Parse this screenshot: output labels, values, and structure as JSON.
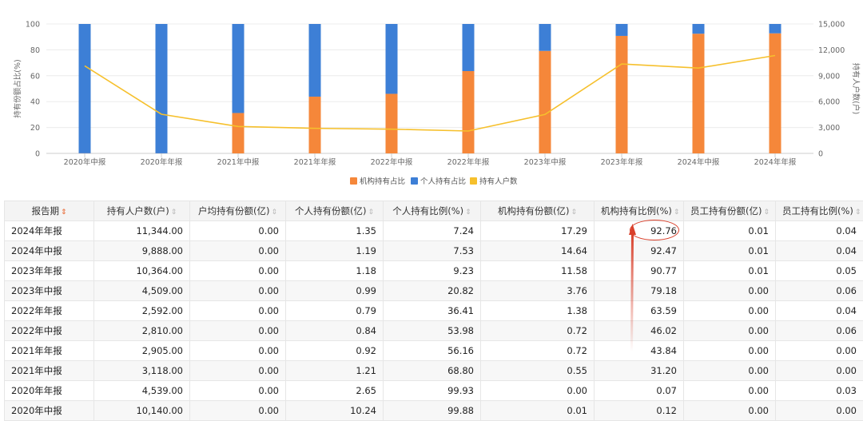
{
  "chart_data": {
    "type": "bar+line",
    "categories": [
      "2020年中报",
      "2020年年报",
      "2021年中报",
      "2021年年报",
      "2022年中报",
      "2022年年报",
      "2023年中报",
      "2023年年报",
      "2024年中报",
      "2024年年报"
    ],
    "series": [
      {
        "name": "机构持有占比",
        "type": "stacked-bar",
        "axis": "left",
        "color": "#f5873a",
        "values": [
          0.12,
          0.07,
          31.2,
          43.84,
          46.02,
          63.59,
          79.18,
          90.77,
          92.47,
          92.76
        ]
      },
      {
        "name": "个人持有占比",
        "type": "stacked-bar",
        "axis": "left",
        "color": "#3d7fd6",
        "values": [
          99.88,
          99.93,
          68.8,
          56.16,
          53.98,
          36.41,
          20.82,
          9.23,
          7.53,
          7.24
        ]
      },
      {
        "name": "持有人户数",
        "type": "line",
        "axis": "right",
        "color": "#f6c02c",
        "values": [
          10140,
          4539,
          3118,
          2905,
          2810,
          2592,
          4509,
          10364,
          9888,
          11344
        ]
      }
    ],
    "yleft": {
      "label": "持有份额占比(%)",
      "ylim": [
        0,
        100
      ],
      "ticks": [
        "0",
        "20",
        "40",
        "60",
        "80",
        "100"
      ]
    },
    "yright": {
      "label": "持有人户数(户)",
      "ylim": [
        0,
        15000
      ],
      "ticks": [
        "0",
        "3,000",
        "6,000",
        "9,000",
        "12,000",
        "15,000"
      ]
    },
    "legend": [
      "机构持有占比",
      "个人持有占比",
      "持有人户数"
    ]
  },
  "table": {
    "headers": [
      "报告期",
      "持有人户数(户)",
      "户均持有份额(亿)",
      "个人持有份额(亿)",
      "个人持有比例(%)",
      "机构持有份额(亿)",
      "机构持有比例(%)",
      "员工持有份额(亿)",
      "员工持有比例(%)"
    ],
    "rows": [
      [
        "2024年年报",
        "11,344.00",
        "0.00",
        "1.35",
        "7.24",
        "17.29",
        "92.76",
        "0.01",
        "0.04"
      ],
      [
        "2024年中报",
        "9,888.00",
        "0.00",
        "1.19",
        "7.53",
        "14.64",
        "92.47",
        "0.01",
        "0.04"
      ],
      [
        "2023年年报",
        "10,364.00",
        "0.00",
        "1.18",
        "9.23",
        "11.58",
        "90.77",
        "0.01",
        "0.05"
      ],
      [
        "2023年中报",
        "4,509.00",
        "0.00",
        "0.99",
        "20.82",
        "3.76",
        "79.18",
        "0.00",
        "0.06"
      ],
      [
        "2022年年报",
        "2,592.00",
        "0.00",
        "0.79",
        "36.41",
        "1.38",
        "63.59",
        "0.00",
        "0.04"
      ],
      [
        "2022年中报",
        "2,810.00",
        "0.00",
        "0.84",
        "53.98",
        "0.72",
        "46.02",
        "0.00",
        "0.06"
      ],
      [
        "2021年年报",
        "2,905.00",
        "0.00",
        "0.92",
        "56.16",
        "0.72",
        "43.84",
        "0.00",
        "0.00"
      ],
      [
        "2021年中报",
        "3,118.00",
        "0.00",
        "1.21",
        "68.80",
        "0.55",
        "31.20",
        "0.00",
        "0.00"
      ],
      [
        "2020年年报",
        "4,539.00",
        "0.00",
        "2.65",
        "99.93",
        "0.00",
        "0.07",
        "0.00",
        "0.03"
      ],
      [
        "2020年中报",
        "10,140.00",
        "0.00",
        "10.24",
        "99.88",
        "0.01",
        "0.12",
        "0.00",
        "0.00"
      ]
    ]
  },
  "annotation": {
    "color": "#d9402b"
  }
}
